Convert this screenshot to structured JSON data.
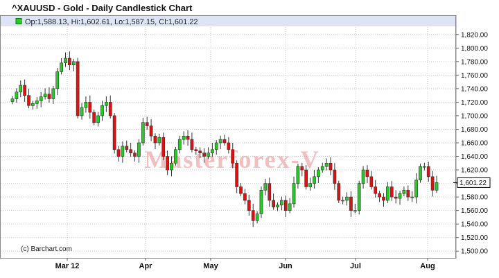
{
  "header": {
    "title": "^XAUUSD - Gold - Daily Candlestick Chart",
    "ohlc": "Op:1,588.13, Hi:1,602.61, Lo:1,587.15, Cl:1,601.22"
  },
  "watermark": "Masterforex-V",
  "credit": "(c) Barchart.com",
  "colors": {
    "up": "#22cc22",
    "down": "#dd1111",
    "grid": "#c8c8c8",
    "header_bg": "#dde4f5"
  },
  "chart_data": {
    "type": "candlestick",
    "y_range": [
      1490,
      1830
    ],
    "y_ticks": [
      "1,500.00",
      "1,520.00",
      "1,540.00",
      "1,560.00",
      "1,580.00",
      "1,600.00",
      "1,620.00",
      "1,640.00",
      "1,660.00",
      "1,680.00",
      "1,700.00",
      "1,720.00",
      "1,740.00",
      "1,760.00",
      "1,780.00",
      "1,800.00",
      "1,820.00"
    ],
    "y_tick_values": [
      1500,
      1520,
      1540,
      1560,
      1580,
      1600,
      1620,
      1640,
      1660,
      1680,
      1700,
      1720,
      1740,
      1760,
      1780,
      1800,
      1820
    ],
    "x_labels": [
      "Mar 12",
      "Apr",
      "May",
      "Jun",
      "Jul",
      "Aug"
    ],
    "last_value": "1,601.22",
    "last_value_number": 1601.22,
    "closes": [
      1725,
      1735,
      1745,
      1730,
      1715,
      1718,
      1722,
      1728,
      1732,
      1725,
      1740,
      1765,
      1778,
      1785,
      1775,
      1780,
      1700,
      1712,
      1720,
      1705,
      1690,
      1700,
      1715,
      1720,
      1700,
      1650,
      1640,
      1655,
      1650,
      1645,
      1640,
      1660,
      1690,
      1685,
      1670,
      1660,
      1668,
      1640,
      1620,
      1630,
      1650,
      1665,
      1670,
      1665,
      1650,
      1648,
      1645,
      1640,
      1645,
      1650,
      1660,
      1665,
      1660,
      1650,
      1630,
      1595,
      1585,
      1575,
      1560,
      1545,
      1555,
      1590,
      1600,
      1575,
      1565,
      1568,
      1575,
      1560,
      1570,
      1600,
      1625,
      1620,
      1595,
      1600,
      1610,
      1620,
      1625,
      1630,
      1620,
      1600,
      1575,
      1575,
      1580,
      1560,
      1560,
      1600,
      1620,
      1610,
      1595,
      1585,
      1580,
      1575,
      1595,
      1580,
      1578,
      1585,
      1590,
      1580,
      1580,
      1605,
      1625,
      1625,
      1610,
      1590,
      1601.22
    ]
  }
}
